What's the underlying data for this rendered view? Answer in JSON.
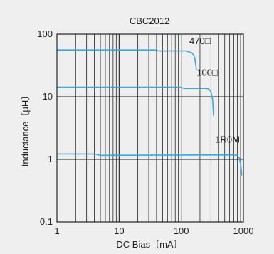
{
  "chart_data": {
    "type": "line",
    "title": "CBC2012",
    "xlabel": "DC Bias〔mA〕",
    "ylabel": "Inductance〔μH〕",
    "xscale": "log",
    "yscale": "log",
    "xlim": [
      1,
      1000
    ],
    "ylim": [
      0.1,
      100
    ],
    "grid": true,
    "x_ticks": [
      "1",
      "10",
      "100",
      "1000"
    ],
    "y_ticks": [
      "100",
      "10",
      "1",
      "0.1"
    ],
    "line_color": "#3aa7dc",
    "series": [
      {
        "name": "470□",
        "points": [
          [
            1,
            56
          ],
          [
            40,
            56
          ],
          [
            42,
            54
          ],
          [
            120,
            54
          ],
          [
            150,
            50
          ],
          [
            165,
            42
          ],
          [
            175,
            27
          ]
        ]
      },
      {
        "name": "100□",
        "points": [
          [
            1,
            14.2
          ],
          [
            100,
            14.2
          ],
          [
            110,
            13.6
          ],
          [
            260,
            13.6
          ],
          [
            280,
            13.2
          ],
          [
            300,
            12
          ],
          [
            320,
            9
          ],
          [
            330,
            5
          ]
        ]
      },
      {
        "name": "1R0M",
        "points": [
          [
            1,
            1.22
          ],
          [
            4,
            1.22
          ],
          [
            5,
            1.16
          ],
          [
            700,
            1.18
          ],
          [
            800,
            1.16
          ],
          [
            860,
            1.05
          ],
          [
            910,
            0.8
          ],
          [
            940,
            0.55
          ]
        ]
      }
    ]
  }
}
